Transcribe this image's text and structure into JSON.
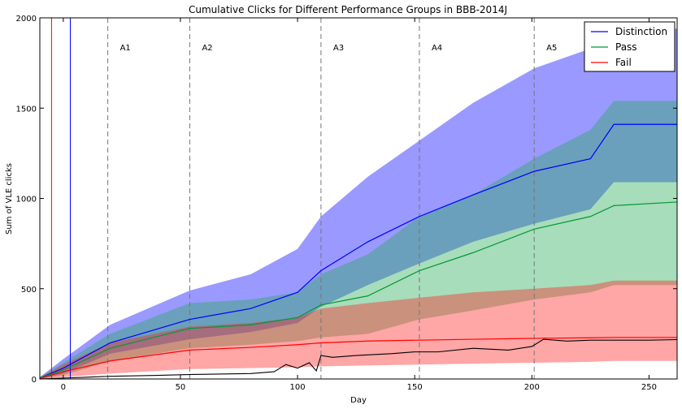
{
  "chart_data": {
    "type": "line",
    "title": "Cumulative Clicks for Different Performance Groups in BBB-2014J",
    "xlabel": "Day",
    "ylabel": "Sum of VLE clicks",
    "xlim": [
      -10,
      262
    ],
    "ylim": [
      0,
      2000
    ],
    "xticks": [
      0,
      50,
      100,
      150,
      200,
      250
    ],
    "yticks": [
      0,
      500,
      1000,
      1500,
      2000
    ],
    "grid": false,
    "legend_position": "top-right",
    "assessments": [
      {
        "label": "A1",
        "day": 19
      },
      {
        "label": "A2",
        "day": 54
      },
      {
        "label": "A3",
        "day": 110
      },
      {
        "label": "A4",
        "day": 152
      },
      {
        "label": "A5",
        "day": 201
      }
    ],
    "vertical_markers": [
      {
        "day": -5,
        "color": "#ff0000"
      },
      {
        "day": 3,
        "color": "#0000ff"
      }
    ],
    "x": [
      -10,
      0,
      20,
      54,
      80,
      100,
      110,
      130,
      152,
      175,
      201,
      225,
      235,
      262
    ],
    "series": [
      {
        "name": "Distinction",
        "color": "#0000ff",
        "band_color": "#0000ff",
        "values": [
          5,
          60,
          200,
          330,
          390,
          480,
          600,
          760,
          900,
          1020,
          1150,
          1220,
          1410,
          1410
        ],
        "upper": [
          10,
          110,
          300,
          490,
          580,
          720,
          900,
          1120,
          1320,
          1530,
          1720,
          1830,
          1940,
          1940
        ],
        "lower": [
          0,
          30,
          140,
          220,
          260,
          310,
          400,
          520,
          640,
          760,
          860,
          940,
          1090,
          1090
        ]
      },
      {
        "name": "Pass",
        "color": "#009933",
        "band_color": "#22aa55",
        "values": [
          5,
          50,
          170,
          280,
          300,
          340,
          410,
          460,
          600,
          700,
          830,
          900,
          960,
          980
        ],
        "upper": [
          10,
          90,
          250,
          420,
          440,
          480,
          580,
          690,
          900,
          1020,
          1220,
          1380,
          1540,
          1540
        ],
        "lower": [
          0,
          20,
          100,
          170,
          190,
          210,
          230,
          250,
          330,
          380,
          440,
          480,
          520,
          520
        ]
      },
      {
        "name": "Fail",
        "color": "#ff0000",
        "band_color": "#ff2020",
        "values": [
          3,
          40,
          100,
          160,
          175,
          190,
          200,
          210,
          215,
          220,
          225,
          228,
          230,
          230
        ],
        "upper": [
          8,
          80,
          200,
          290,
          310,
          340,
          390,
          420,
          450,
          480,
          500,
          520,
          545,
          545
        ],
        "lower": [
          0,
          10,
          30,
          55,
          60,
          65,
          70,
          75,
          80,
          85,
          90,
          95,
          100,
          100
        ]
      }
    ],
    "unlabeled_line": {
      "color": "#000000",
      "x": [
        -10,
        0,
        10,
        20,
        40,
        55,
        80,
        90,
        95,
        100,
        105,
        108,
        110,
        115,
        125,
        140,
        150,
        160,
        175,
        190,
        200,
        205,
        215,
        225,
        235,
        250,
        262
      ],
      "values": [
        0,
        5,
        10,
        15,
        20,
        25,
        30,
        40,
        80,
        60,
        90,
        45,
        130,
        120,
        130,
        140,
        150,
        150,
        170,
        160,
        180,
        220,
        210,
        215,
        215,
        215,
        218
      ]
    }
  }
}
